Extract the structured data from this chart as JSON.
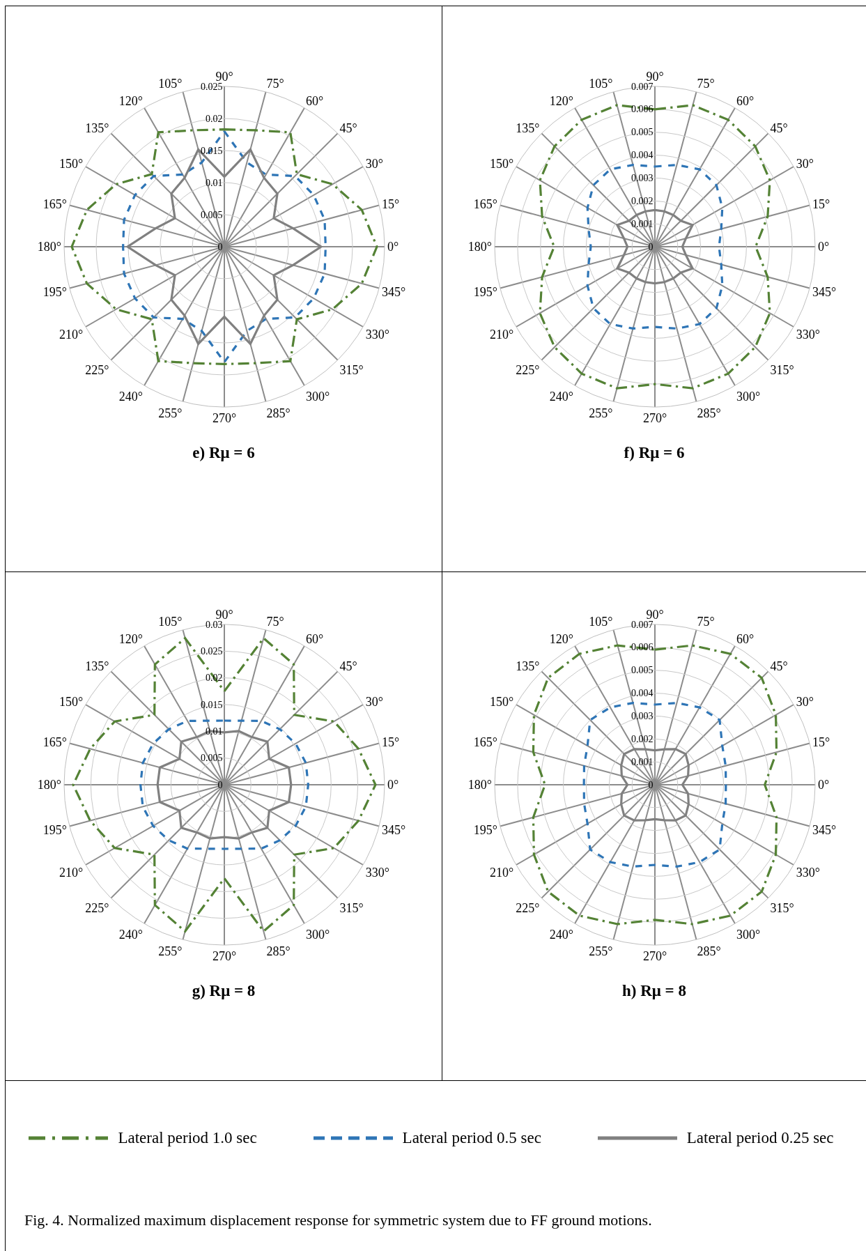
{
  "chart_data": [
    {
      "type": "radar",
      "title": "e) Rμ = 6",
      "categories": [
        "90°",
        "75°",
        "60°",
        "45°",
        "30°",
        "15°",
        "0°",
        "345°",
        "330°",
        "315°",
        "300°",
        "285°",
        "270°",
        "255°",
        "240°",
        "225°",
        "210°",
        "195°",
        "180°",
        "165°",
        "150°",
        "135°",
        "120°",
        "105°"
      ],
      "ylim": [
        0,
        0.025
      ],
      "yticks": [
        0,
        0.005,
        0.01,
        0.015,
        0.02,
        0.025
      ],
      "grid": true,
      "marker": "none",
      "legend": "bottom",
      "series": [
        {
          "name": "Lateral period 1.0 sec",
          "color": "#548235",
          "line_style": "dashdot",
          "values": [
            0.0183,
            0.0188,
            0.0206,
            0.016,
            0.0195,
            0.0222,
            0.0238,
            0.0222,
            0.0195,
            0.016,
            0.0206,
            0.0188,
            0.0183,
            0.0188,
            0.0206,
            0.016,
            0.0195,
            0.0222,
            0.0238,
            0.0222,
            0.0195,
            0.016,
            0.0206,
            0.0188
          ]
        },
        {
          "name": "Lateral period 0.5 sec",
          "color": "#2e75b6",
          "line_style": "dashed",
          "values": [
            0.018,
            0.0136,
            0.013,
            0.0156,
            0.0161,
            0.0162,
            0.0158,
            0.0162,
            0.0161,
            0.0156,
            0.013,
            0.0136,
            0.018,
            0.0136,
            0.013,
            0.0156,
            0.0161,
            0.0162,
            0.0158,
            0.0162,
            0.0161,
            0.0156,
            0.013,
            0.0136
          ]
        },
        {
          "name": "Lateral period 0.25 sec",
          "color": "#808080",
          "line_style": "solid",
          "values": [
            0.0109,
            0.0157,
            0.0124,
            0.0117,
            0.0089,
            0.0111,
            0.0151,
            0.0111,
            0.0089,
            0.0117,
            0.0124,
            0.0157,
            0.0109,
            0.0157,
            0.0124,
            0.0117,
            0.0089,
            0.0111,
            0.0151,
            0.0111,
            0.0089,
            0.0117,
            0.0124,
            0.0157
          ]
        }
      ]
    },
    {
      "type": "radar",
      "title": "f) Rμ = 6",
      "categories": [
        "90°",
        "75°",
        "60°",
        "45°",
        "30°",
        "15°",
        "0°",
        "345°",
        "330°",
        "315°",
        "300°",
        "285°",
        "270°",
        "255°",
        "240°",
        "225°",
        "210°",
        "195°",
        "180°",
        "165°",
        "150°",
        "135°",
        "120°",
        "105°"
      ],
      "ylim": [
        0,
        0.007
      ],
      "yticks": [
        0,
        0.001,
        0.002,
        0.003,
        0.004,
        0.005,
        0.006,
        0.007
      ],
      "grid": true,
      "marker": "none",
      "series": [
        {
          "color": "#548235",
          "line_style": "dashdot",
          "values": [
            0.006,
            0.0064,
            0.0064,
            0.0062,
            0.0058,
            0.0051,
            0.0044,
            0.0051,
            0.0058,
            0.0062,
            0.0064,
            0.0064,
            0.006,
            0.0064,
            0.0064,
            0.0062,
            0.0058,
            0.0051,
            0.0044,
            0.0051,
            0.0058,
            0.0062,
            0.0064,
            0.0064
          ]
        },
        {
          "color": "#2e75b6",
          "line_style": "dashed",
          "values": [
            0.0035,
            0.0037,
            0.0039,
            0.0038,
            0.0034,
            0.003,
            0.0028,
            0.003,
            0.0034,
            0.0038,
            0.0039,
            0.0037,
            0.0035,
            0.0037,
            0.0039,
            0.0038,
            0.0034,
            0.003,
            0.0028,
            0.003,
            0.0034,
            0.0038,
            0.0039,
            0.0037
          ]
        },
        {
          "color": "#808080",
          "line_style": "solid",
          "values": [
            0.0016,
            0.0016,
            0.0016,
            0.0016,
            0.0019,
            0.0014,
            0.0012,
            0.0014,
            0.0019,
            0.0016,
            0.0016,
            0.0016,
            0.0016,
            0.0016,
            0.0016,
            0.0016,
            0.0019,
            0.0014,
            0.0012,
            0.0014,
            0.0019,
            0.0016,
            0.0016,
            0.0016
          ]
        }
      ]
    },
    {
      "type": "radar",
      "title": "g) Rμ = 8",
      "categories": [
        "90°",
        "75°",
        "60°",
        "45°",
        "30°",
        "15°",
        "0°",
        "345°",
        "330°",
        "315°",
        "300°",
        "285°",
        "270°",
        "255°",
        "240°",
        "225°",
        "210°",
        "195°",
        "180°",
        "165°",
        "150°",
        "135°",
        "120°",
        "105°"
      ],
      "ylim": [
        0,
        0.03
      ],
      "yticks": [
        0,
        0.005,
        0.01,
        0.015,
        0.02,
        0.025,
        0.03
      ],
      "grid": true,
      "marker": "none",
      "series": [
        {
          "color": "#548235",
          "line_style": "dashdot",
          "values": [
            0.0175,
            0.0284,
            0.026,
            0.0185,
            0.0237,
            0.026,
            0.0283,
            0.026,
            0.0237,
            0.0185,
            0.026,
            0.0284,
            0.0175,
            0.0284,
            0.026,
            0.0185,
            0.0237,
            0.026,
            0.0283,
            0.026,
            0.0237,
            0.0185,
            0.026,
            0.0284
          ]
        },
        {
          "color": "#2e75b6",
          "line_style": "dashed",
          "values": [
            0.012,
            0.0124,
            0.0138,
            0.0147,
            0.0154,
            0.0158,
            0.0157,
            0.0158,
            0.0154,
            0.0147,
            0.0138,
            0.0124,
            0.012,
            0.0124,
            0.0138,
            0.0147,
            0.0154,
            0.0158,
            0.0157,
            0.0158,
            0.0154,
            0.0147,
            0.0138,
            0.0124
          ]
        },
        {
          "color": "#808080",
          "line_style": "solid",
          "values": [
            0.0098,
            0.0104,
            0.0103,
            0.0114,
            0.0097,
            0.0125,
            0.0125,
            0.0125,
            0.0097,
            0.0114,
            0.0103,
            0.0104,
            0.0098,
            0.0104,
            0.0103,
            0.0114,
            0.0097,
            0.0125,
            0.0125,
            0.0125,
            0.0097,
            0.0114,
            0.0103,
            0.0104
          ]
        }
      ]
    },
    {
      "type": "radar",
      "title": "h) Rμ = 8",
      "categories": [
        "90°",
        "75°",
        "60°",
        "45°",
        "30°",
        "15°",
        "0°",
        "345°",
        "330°",
        "315°",
        "300°",
        "285°",
        "270°",
        "255°",
        "240°",
        "225°",
        "210°",
        "195°",
        "180°",
        "165°",
        "150°",
        "135°",
        "120°",
        "105°"
      ],
      "ylim": [
        0,
        0.007
      ],
      "yticks": [
        0,
        0.001,
        0.002,
        0.003,
        0.004,
        0.005,
        0.006,
        0.007
      ],
      "grid": true,
      "marker": "none",
      "annotations": [
        "Fig. 4. Normalized maximum displacement response for symmetric system due to FF ground motions."
      ],
      "series": [
        {
          "color": "#548235",
          "line_style": "dashdot",
          "values": [
            0.0059,
            0.0063,
            0.0066,
            0.0066,
            0.0061,
            0.0055,
            0.0048,
            0.0055,
            0.0061,
            0.0066,
            0.0066,
            0.0063,
            0.0059,
            0.0063,
            0.0066,
            0.0066,
            0.0061,
            0.0055,
            0.0048,
            0.0055,
            0.0061,
            0.0066,
            0.0066,
            0.0063
          ]
        },
        {
          "color": "#2e75b6",
          "line_style": "dashed",
          "values": [
            0.0035,
            0.0037,
            0.0039,
            0.004,
            0.0034,
            0.0032,
            0.0031,
            0.0032,
            0.0034,
            0.004,
            0.0039,
            0.0037,
            0.0035,
            0.0037,
            0.0039,
            0.004,
            0.0034,
            0.0032,
            0.0031,
            0.0032,
            0.0034,
            0.004,
            0.0039,
            0.0037
          ]
        },
        {
          "color": "#808080",
          "line_style": "solid",
          "values": [
            0.0015,
            0.0016,
            0.0018,
            0.0019,
            0.0017,
            0.0015,
            0.0012,
            0.0015,
            0.0017,
            0.0019,
            0.0018,
            0.0016,
            0.0015,
            0.0016,
            0.0018,
            0.0019,
            0.0017,
            0.0015,
            0.0012,
            0.0015,
            0.0017,
            0.0019,
            0.0018,
            0.0016
          ]
        }
      ]
    }
  ]
}
